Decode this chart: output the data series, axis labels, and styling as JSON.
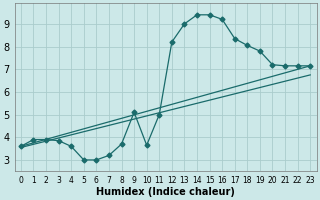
{
  "xlabel": "Humidex (Indice chaleur)",
  "bg_color": "#cce8e8",
  "grid_color": "#aacccc",
  "line_color": "#1a6b6b",
  "xlim": [
    -0.5,
    23.5
  ],
  "ylim": [
    2.5,
    9.9
  ],
  "xticks": [
    0,
    1,
    2,
    3,
    4,
    5,
    6,
    7,
    8,
    9,
    10,
    11,
    12,
    13,
    14,
    15,
    16,
    17,
    18,
    19,
    20,
    21,
    22,
    23
  ],
  "yticks": [
    3,
    4,
    5,
    6,
    7,
    8,
    9
  ],
  "curve1_x": [
    0,
    1,
    2,
    3,
    4,
    5,
    6,
    7,
    8,
    9,
    10,
    11,
    12,
    13,
    14,
    15,
    16,
    17,
    18,
    19,
    20,
    21,
    22,
    23
  ],
  "curve1_y": [
    3.6,
    3.9,
    3.9,
    3.85,
    3.6,
    3.0,
    3.0,
    3.2,
    3.7,
    5.1,
    3.65,
    5.0,
    8.2,
    9.0,
    9.4,
    9.4,
    9.2,
    8.35,
    8.05,
    7.8,
    7.2,
    7.15,
    7.15,
    7.15
  ],
  "line1_x": [
    0,
    23
  ],
  "line1_y": [
    3.6,
    7.15
  ],
  "line2_x": [
    0,
    23
  ],
  "line2_y": [
    3.55,
    6.75
  ],
  "xlabel_fontsize": 7,
  "tick_fontsize_x": 5.5,
  "tick_fontsize_y": 7,
  "linewidth": 0.9,
  "markersize": 2.5
}
